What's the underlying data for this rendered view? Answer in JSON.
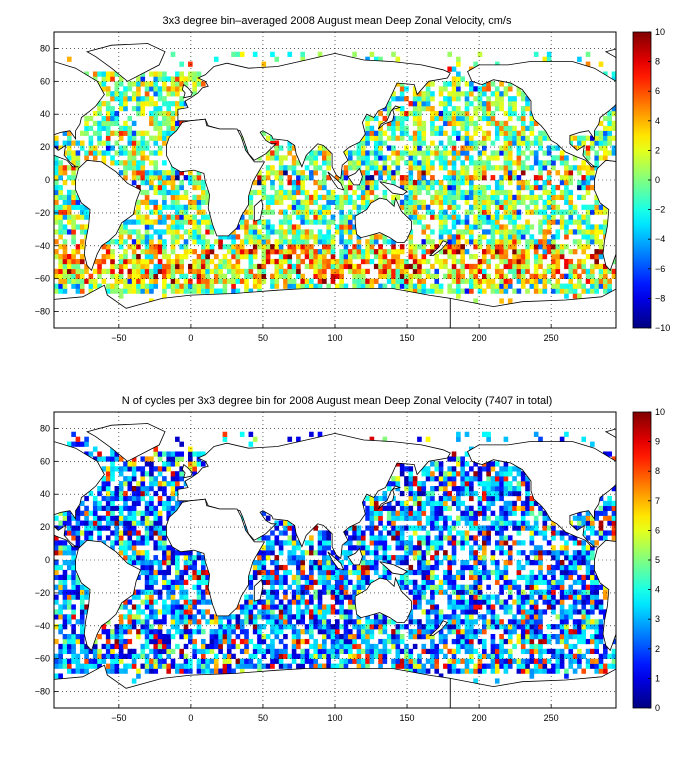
{
  "chart_data": [
    {
      "type": "heatmap",
      "title": "3x3 degree bin–averaged 2008 August mean Deep Zonal Velocity, cm/s",
      "xlim": [
        -95,
        295
      ],
      "ylim": [
        -90,
        90
      ],
      "xticks": [
        -50,
        0,
        50,
        100,
        150,
        200,
        250
      ],
      "yticks": [
        80,
        60,
        40,
        20,
        0,
        -20,
        -40,
        -60,
        -80
      ],
      "bin_size_deg": 3,
      "colorbar": {
        "min": -10,
        "max": 10,
        "ticks": [
          10,
          8,
          6,
          4,
          2,
          0,
          -2,
          -4,
          -6,
          -8,
          -10
        ],
        "colormap": "jet"
      },
      "grid": true,
      "seed": 7
    },
    {
      "type": "heatmap",
      "title": "N of cycles per 3x3 degree bin for 2008 August mean Deep Zonal Velocity (7407 in total)",
      "xlim": [
        -95,
        295
      ],
      "ylim": [
        -90,
        90
      ],
      "xticks": [
        -50,
        0,
        50,
        100,
        150,
        200,
        250
      ],
      "yticks": [
        80,
        60,
        40,
        20,
        0,
        -20,
        -40,
        -60,
        -80
      ],
      "bin_size_deg": 3,
      "total_cycles": 7407,
      "colorbar": {
        "min": 0,
        "max": 10,
        "ticks": [
          10,
          9,
          8,
          7,
          6,
          5,
          4,
          3,
          2,
          1,
          0
        ],
        "colormap": "jet"
      },
      "grid": true,
      "seed": 19
    }
  ]
}
